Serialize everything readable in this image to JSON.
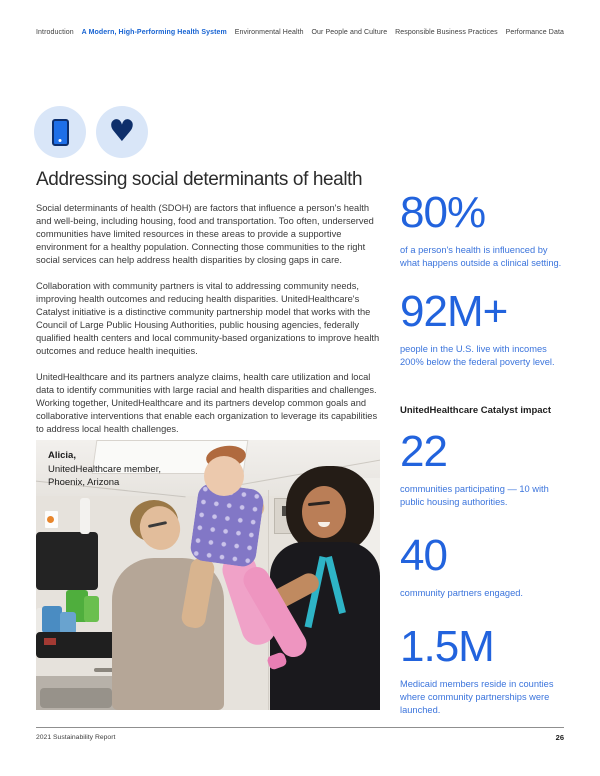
{
  "nav": {
    "items": [
      {
        "label": "Introduction",
        "active": false
      },
      {
        "label": "A Modern, High-Performing Health System",
        "active": true
      },
      {
        "label": "Environmental Health",
        "active": false
      },
      {
        "label": "Our People and Culture",
        "active": false
      },
      {
        "label": "Responsible Business Practices",
        "active": false
      },
      {
        "label": "Performance Data",
        "active": false
      }
    ]
  },
  "icons": {
    "heart_glyph": "♥"
  },
  "article": {
    "title": "Addressing social determinants of health",
    "paragraphs": [
      "Social determinants of health (SDOH) are factors that influence a person's health and well-being, including housing, food and transportation. Too often, underserved communities have limited resources in these areas to provide a supportive environment for a healthy population. Connecting those communities to the right social services can help address health disparities by closing gaps in care.",
      "Collaboration with community partners is vital to addressing community needs, improving health outcomes and reducing health disparities. UnitedHealthcare's Catalyst initiative is a distinctive community partnership model that works with the Council of Large Public Housing Authorities, public housing agencies, federally qualified health centers and local community-based organizations to improve health outcomes and reduce health inequities.",
      "UnitedHealthcare and its partners analyze claims, health care utilization and local data to identify communities with large racial and health disparities and challenges. Working together, UnitedHealthcare and its partners develop common goals and collaborative interventions that enable each organization to leverage its capabilities to address local health challenges."
    ]
  },
  "photo": {
    "name": "Alicia,",
    "line2": "UnitedHealthcare member,",
    "line3": "Phoenix, Arizona"
  },
  "stats": [
    {
      "value": "80%",
      "caption": "of a person's health is influenced by what happens outside a clinical setting."
    },
    {
      "value": "92M+",
      "caption": "people in the U.S. live with incomes 200% below the federal poverty level."
    }
  ],
  "catalyst": {
    "heading": "UnitedHealthcare Catalyst impact",
    "stats": [
      {
        "value": "22",
        "caption": "communities participating — 10 with public housing authorities."
      },
      {
        "value": "40",
        "caption": "community partners engaged."
      },
      {
        "value": "1.5M",
        "caption": "Medicaid members reside in counties where community partnerships were launched."
      }
    ]
  },
  "footer": {
    "left": "2021 Sustainability Report",
    "page": "26"
  },
  "colors": {
    "accent_blue": "#1763d2",
    "stat_blue": "#2263dd",
    "caption_blue": "#3b74dc",
    "navy": "#0e2f6b",
    "badge_bg": "#d9e6f8"
  }
}
